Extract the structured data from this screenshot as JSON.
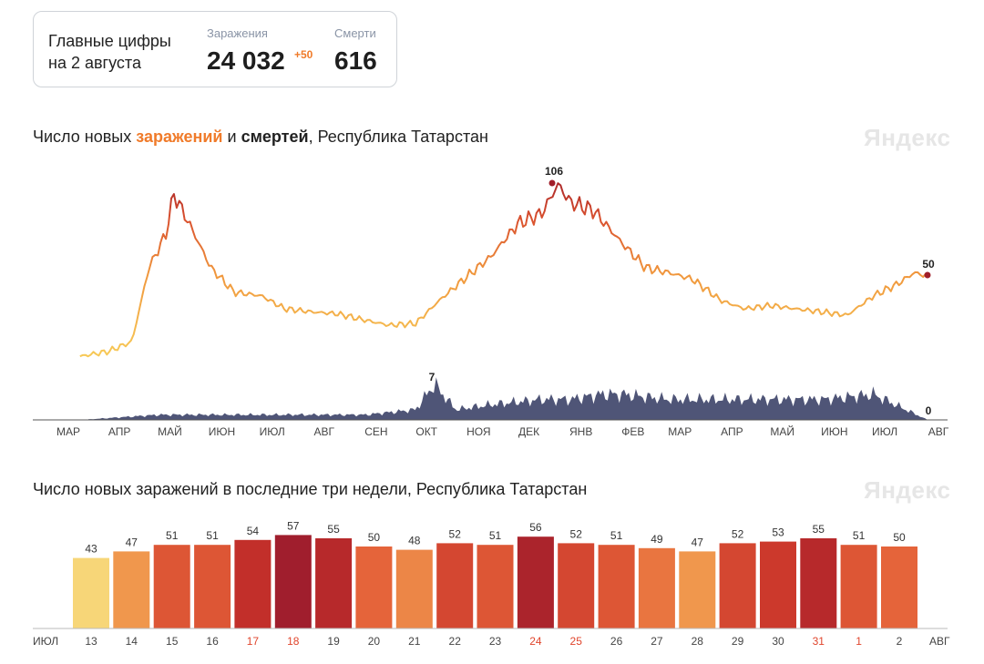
{
  "summary": {
    "caption_line1": "Главные цифры",
    "caption_line2": "на 2 августа",
    "infections_label": "Заражения",
    "infections_value": "24 032",
    "infections_delta": "+50",
    "deaths_label": "Смерти",
    "deaths_value": "616"
  },
  "charts": {
    "main": {
      "title_part1": "Число новых ",
      "title_infections": "заражений",
      "title_part2": " и ",
      "title_deaths": "смертей",
      "title_part3": ", Республика Татарстан",
      "watermark": "Яндекс",
      "month_labels": [
        "МАР",
        "АПР",
        "МАЙ",
        "ИЮН",
        "ИЮЛ",
        "АВГ",
        "СЕН",
        "ОКТ",
        "НОЯ",
        "ДЕК",
        "ЯНВ",
        "ФЕВ",
        "МАР",
        "АПР",
        "МАЙ",
        "ИЮН",
        "ИЮЛ",
        "АВГ"
      ],
      "peak_infections_label": "106",
      "last_infections_label": "50",
      "peak_deaths_label": "7",
      "last_deaths_label": "0"
    },
    "bars": {
      "title": "Число новых заражений в последние три недели, Республика Татарстан",
      "watermark": "Яндекс",
      "start_label": "ИЮЛ",
      "end_label": "АВГ"
    }
  },
  "chart_data": [
    {
      "type": "line",
      "title": "Число новых заражений и смертей, Республика Татарстан",
      "x_range": [
        "2020-03",
        "2021-08-02"
      ],
      "series": [
        {
          "name": "заражений",
          "points": [
            [
              "2020-03-15",
              1
            ],
            [
              "2020-04-01",
              4
            ],
            [
              "2020-04-15",
              10
            ],
            [
              "2020-04-25",
              55
            ],
            [
              "2020-05-05",
              75
            ],
            [
              "2020-05-10",
              100
            ],
            [
              "2020-05-20",
              80
            ],
            [
              "2020-06-01",
              55
            ],
            [
              "2020-06-15",
              40
            ],
            [
              "2020-07-01",
              38
            ],
            [
              "2020-07-15",
              30
            ],
            [
              "2020-08-01",
              28
            ],
            [
              "2020-08-15",
              27
            ],
            [
              "2020-09-01",
              23
            ],
            [
              "2020-09-15",
              20
            ],
            [
              "2020-10-01",
              21
            ],
            [
              "2020-10-15",
              35
            ],
            [
              "2020-11-01",
              50
            ],
            [
              "2020-11-15",
              62
            ],
            [
              "2020-12-01",
              82
            ],
            [
              "2020-12-15",
              88
            ],
            [
              "2020-12-25",
              106
            ],
            [
              "2021-01-01",
              95
            ],
            [
              "2021-01-15",
              90
            ],
            [
              "2021-02-01",
              70
            ],
            [
              "2021-02-15",
              55
            ],
            [
              "2021-03-01",
              52
            ],
            [
              "2021-03-15",
              48
            ],
            [
              "2021-04-01",
              35
            ],
            [
              "2021-04-15",
              30
            ],
            [
              "2021-05-01",
              32
            ],
            [
              "2021-05-15",
              30
            ],
            [
              "2021-06-01",
              28
            ],
            [
              "2021-06-15",
              26
            ],
            [
              "2021-07-01",
              38
            ],
            [
              "2021-07-15",
              45
            ],
            [
              "2021-07-25",
              52
            ],
            [
              "2021-08-02",
              50
            ]
          ]
        },
        {
          "name": "смертей",
          "points": [
            [
              "2020-03-15",
              0
            ],
            [
              "2020-05-01",
              1
            ],
            [
              "2020-06-01",
              1
            ],
            [
              "2020-07-01",
              1
            ],
            [
              "2020-08-01",
              1
            ],
            [
              "2020-09-01",
              1
            ],
            [
              "2020-10-01",
              2
            ],
            [
              "2020-10-12",
              7
            ],
            [
              "2020-10-25",
              2
            ],
            [
              "2020-11-15",
              3
            ],
            [
              "2020-12-15",
              4
            ],
            [
              "2021-01-01",
              4
            ],
            [
              "2021-01-20",
              5
            ],
            [
              "2021-02-01",
              5
            ],
            [
              "2021-03-01",
              4
            ],
            [
              "2021-04-01",
              4
            ],
            [
              "2021-05-01",
              4
            ],
            [
              "2021-06-01",
              4
            ],
            [
              "2021-07-01",
              5
            ],
            [
              "2021-08-02",
              0
            ]
          ]
        }
      ],
      "labels": {
        "peak_infections": 106,
        "last_infections": 50,
        "peak_deaths": 7,
        "last_deaths": 0
      }
    },
    {
      "type": "bar",
      "title": "Число новых заражений в последние три недели, Республика Татарстан",
      "categories": [
        "13",
        "14",
        "15",
        "16",
        "17",
        "18",
        "19",
        "20",
        "21",
        "22",
        "23",
        "24",
        "25",
        "26",
        "27",
        "28",
        "29",
        "30",
        "31",
        "1",
        "2"
      ],
      "values": [
        43,
        47,
        51,
        51,
        54,
        57,
        55,
        50,
        48,
        52,
        51,
        56,
        52,
        51,
        49,
        47,
        52,
        53,
        55,
        51,
        50
      ],
      "weekend": [
        false,
        false,
        false,
        false,
        true,
        true,
        false,
        false,
        false,
        false,
        false,
        true,
        true,
        false,
        false,
        false,
        false,
        false,
        true,
        true,
        false
      ],
      "colors": {
        "weekday_tick": "#444444",
        "weekend_tick": "#e0452c"
      }
    }
  ]
}
